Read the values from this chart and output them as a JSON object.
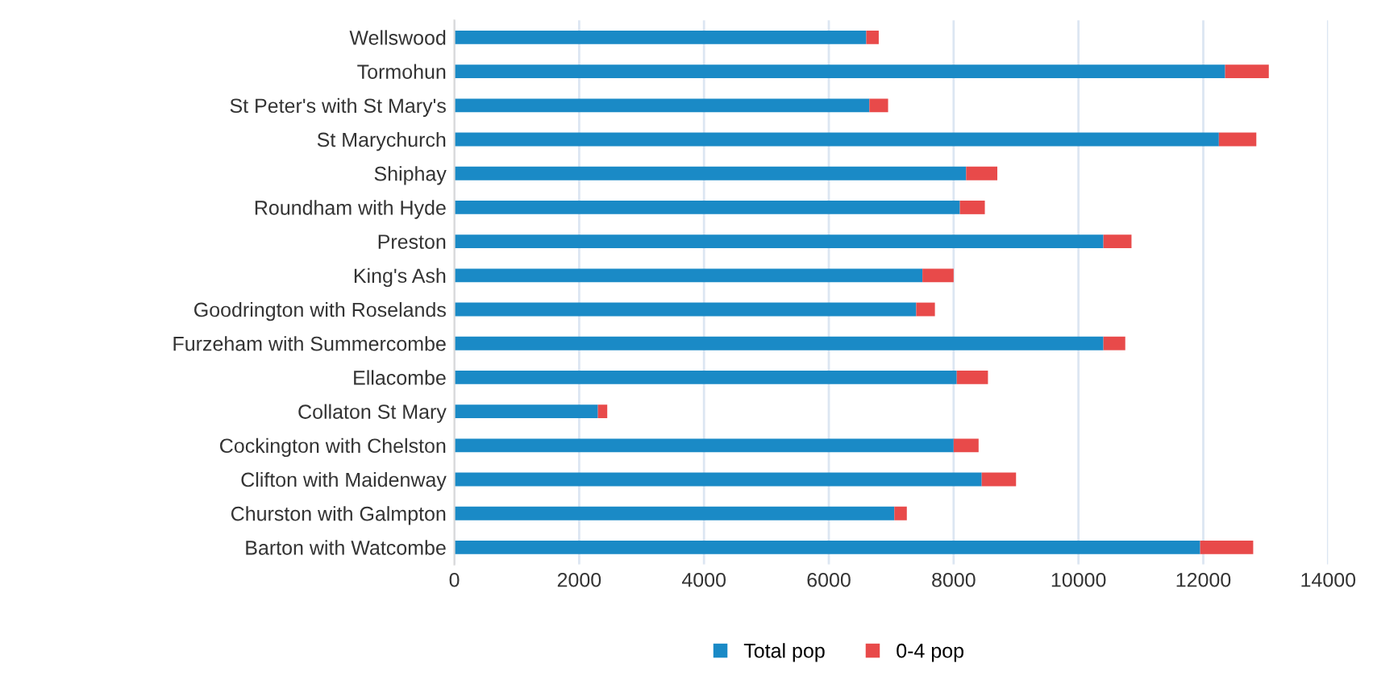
{
  "chart_data": {
    "type": "bar",
    "orientation": "horizontal",
    "stacked": true,
    "categories": [
      "Wellswood",
      "Tormohun",
      "St Peter's with St Mary's",
      "St Marychurch",
      "Shiphay",
      "Roundham with Hyde",
      "Preston",
      "King's Ash",
      "Goodrington with Roselands",
      "Furzeham with Summercombe",
      "Ellacombe",
      "Collaton St Mary",
      "Cockington with Chelston",
      "Clifton with Maidenway",
      "Churston with Galmpton",
      "Barton with Watcombe"
    ],
    "series": [
      {
        "name": "Total pop",
        "color": "#1a8ac6",
        "values": [
          6600,
          12350,
          6650,
          12250,
          8200,
          8100,
          10400,
          7500,
          7400,
          10400,
          8050,
          2300,
          8000,
          8450,
          7050,
          11950
        ]
      },
      {
        "name": "0-4 pop",
        "color": "#e84a4a",
        "values": [
          200,
          700,
          300,
          600,
          500,
          400,
          450,
          500,
          300,
          350,
          500,
          150,
          400,
          550,
          200,
          850
        ]
      }
    ],
    "xlim": [
      0,
      14000
    ],
    "xticks": [
      0,
      2000,
      4000,
      6000,
      8000,
      10000,
      12000,
      14000
    ],
    "grid": "x",
    "legend": "bottom"
  }
}
